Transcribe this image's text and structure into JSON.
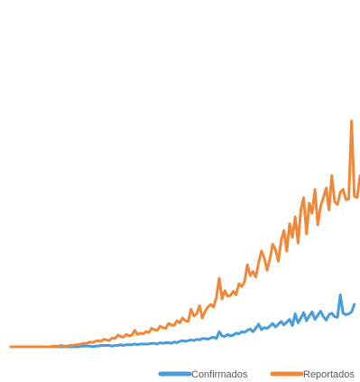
{
  "chart_data": {
    "type": "line",
    "title": "",
    "xlabel": "",
    "ylabel": "",
    "grid": false,
    "legend_position": "bottom",
    "colors": {
      "Confirmados": "#4a9bd9",
      "Reportados": "#f0883a"
    },
    "series": [
      {
        "name": "Confirmados",
        "values": [
          0,
          0,
          0,
          0,
          0,
          0,
          0,
          0,
          0,
          0,
          0,
          0,
          0,
          0,
          0,
          0,
          0,
          0,
          0,
          0,
          0,
          0,
          0,
          0,
          0,
          1,
          1,
          1,
          1,
          0,
          1,
          1,
          2,
          2,
          2,
          2,
          1,
          2,
          2,
          3,
          2,
          3,
          3,
          3,
          4,
          3,
          4,
          4,
          4,
          4,
          5,
          5,
          4,
          6,
          5,
          6,
          6,
          5,
          7,
          6,
          8,
          9,
          8,
          9,
          10,
          9,
          11,
          10,
          12,
          12,
          11,
          13,
          14,
          12,
          22,
          16,
          15,
          18,
          16,
          17,
          20,
          19,
          22,
          21,
          24,
          26,
          22,
          27,
          33,
          25,
          28,
          27,
          30,
          34,
          29,
          33,
          37,
          32,
          36,
          40,
          31,
          48,
          35,
          42,
          50,
          38,
          45,
          51,
          40,
          46,
          52,
          44,
          39,
          47,
          49,
          44,
          43,
          76,
          49,
          47,
          48,
          51,
          62
        ]
      },
      {
        "name": "Reportados",
        "values": [
          0,
          0,
          0,
          0,
          0,
          0,
          0,
          0,
          0,
          0,
          0,
          0,
          0,
          0,
          0,
          1,
          1,
          1,
          2,
          1,
          1,
          2,
          2,
          3,
          3,
          4,
          5,
          5,
          7,
          6,
          8,
          9,
          8,
          11,
          10,
          9,
          13,
          12,
          17,
          15,
          14,
          18,
          16,
          17,
          24,
          18,
          20,
          19,
          22,
          21,
          27,
          25,
          24,
          30,
          28,
          27,
          34,
          32,
          31,
          38,
          35,
          42,
          38,
          37,
          55,
          45,
          48,
          60,
          42,
          52,
          58,
          62,
          58,
          72,
          100,
          70,
          82,
          74,
          75,
          81,
          76,
          92,
          88,
          95,
          120,
          104,
          110,
          102,
          123,
          140,
          130,
          112,
          128,
          150,
          142,
          125,
          155,
          170,
          140,
          180,
          160,
          190,
          152,
          200,
          218,
          165,
          210,
          195,
          230,
          178,
          205,
          218,
          232,
          200,
          250,
          212,
          208,
          226,
          230,
          215,
          216,
          330,
          220,
          218,
          250
        ]
      }
    ],
    "legend": [
      "Confirmados",
      "Reportados"
    ]
  }
}
